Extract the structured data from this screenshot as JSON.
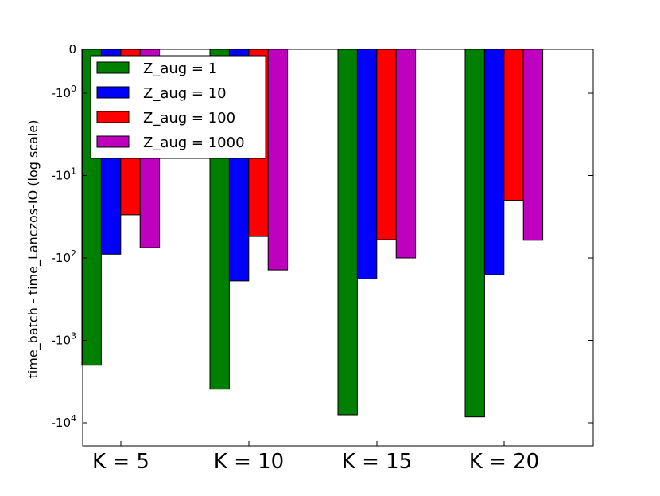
{
  "chart_data": {
    "type": "bar",
    "title": "",
    "xlabel": "",
    "ylabel": "time_batch - time_Lanczos-IO (log scale)",
    "yscale": "symlog",
    "categories": [
      "K = 5",
      "K = 10",
      "K = 15",
      "K = 20"
    ],
    "series": [
      {
        "name": "Z_aug = 1",
        "color": "#008000",
        "values": [
          -2000,
          -3900,
          -8000,
          -8500
        ]
      },
      {
        "name": "Z_aug = 10",
        "color": "#0000ff",
        "values": [
          -90,
          -190,
          -180,
          -160
        ]
      },
      {
        "name": "Z_aug = 100",
        "color": "#ff0000",
        "values": [
          -30,
          -55,
          -60,
          -20
        ]
      },
      {
        "name": "Z_aug = 1000",
        "color": "#bf00bf",
        "values": [
          -75,
          -140,
          -100,
          -61
        ]
      }
    ],
    "y_ticks": [
      {
        "value": 0,
        "label": "0"
      },
      {
        "value": -1,
        "label": "-10^0"
      },
      {
        "value": -10,
        "label": "-10^1"
      },
      {
        "value": -100,
        "label": "-10^2"
      },
      {
        "value": -1000,
        "label": "-10^3"
      },
      {
        "value": -10000,
        "label": "-10^4"
      }
    ],
    "ylim": [
      -10000,
      0
    ],
    "legend_position": "top-left",
    "grid": false
  }
}
